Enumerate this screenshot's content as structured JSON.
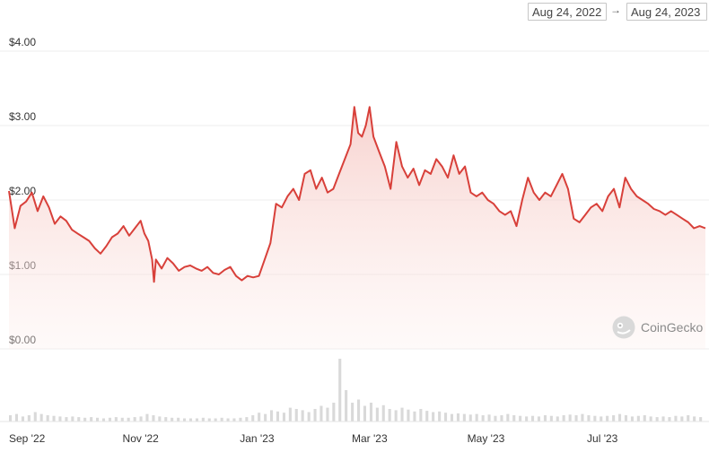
{
  "date_range": {
    "from": "Aug 24, 2022",
    "arrow": "→",
    "to": "Aug 24, 2023"
  },
  "watermark": {
    "label": "CoinGecko"
  },
  "colors": {
    "line": "#d8403a",
    "fill_top": "#f6c9c5",
    "volume": "#d9d9d9",
    "grid": "#ececec"
  },
  "chart_data": {
    "type": "area",
    "title": "",
    "xlabel": "",
    "ylabel": "",
    "ylim": [
      0,
      4
    ],
    "y_ticks": [
      {
        "value": 4,
        "label": "$4.00"
      },
      {
        "value": 3,
        "label": "$3.00"
      },
      {
        "value": 2,
        "label": "$2.00"
      },
      {
        "value": 1,
        "label": "$1.00"
      },
      {
        "value": 0,
        "label": "$0.00"
      }
    ],
    "x_range": [
      "2022-08-24",
      "2023-08-24"
    ],
    "x_ticks": [
      {
        "date": "2022-09-01",
        "label": "Sep '22"
      },
      {
        "date": "2022-11-01",
        "label": "Nov '22"
      },
      {
        "date": "2023-01-01",
        "label": "Jan '23"
      },
      {
        "date": "2023-03-01",
        "label": "Mar '23"
      },
      {
        "date": "2023-05-01",
        "label": "May '23"
      },
      {
        "date": "2023-07-01",
        "label": "Jul '23"
      }
    ],
    "grid": true,
    "series": [
      {
        "values": [
          [
            "2022-08-24",
            2.12
          ],
          [
            "2022-08-27",
            1.62
          ],
          [
            "2022-08-30",
            1.92
          ],
          [
            "2022-09-02",
            1.98
          ],
          [
            "2022-09-05",
            2.1
          ],
          [
            "2022-09-08",
            1.85
          ],
          [
            "2022-09-11",
            2.05
          ],
          [
            "2022-09-14",
            1.9
          ],
          [
            "2022-09-17",
            1.68
          ],
          [
            "2022-09-20",
            1.78
          ],
          [
            "2022-09-23",
            1.72
          ],
          [
            "2022-09-26",
            1.6
          ],
          [
            "2022-09-29",
            1.55
          ],
          [
            "2022-10-02",
            1.5
          ],
          [
            "2022-10-05",
            1.45
          ],
          [
            "2022-10-08",
            1.35
          ],
          [
            "2022-10-11",
            1.28
          ],
          [
            "2022-10-14",
            1.38
          ],
          [
            "2022-10-17",
            1.5
          ],
          [
            "2022-10-20",
            1.55
          ],
          [
            "2022-10-23",
            1.65
          ],
          [
            "2022-10-26",
            1.52
          ],
          [
            "2022-10-29",
            1.62
          ],
          [
            "2022-11-01",
            1.72
          ],
          [
            "2022-11-03",
            1.55
          ],
          [
            "2022-11-05",
            1.45
          ],
          [
            "2022-11-07",
            1.2
          ],
          [
            "2022-11-08",
            0.9
          ],
          [
            "2022-11-09",
            1.2
          ],
          [
            "2022-11-12",
            1.08
          ],
          [
            "2022-11-15",
            1.22
          ],
          [
            "2022-11-18",
            1.15
          ],
          [
            "2022-11-21",
            1.05
          ],
          [
            "2022-11-24",
            1.1
          ],
          [
            "2022-11-27",
            1.12
          ],
          [
            "2022-11-30",
            1.08
          ],
          [
            "2022-12-03",
            1.05
          ],
          [
            "2022-12-06",
            1.1
          ],
          [
            "2022-12-09",
            1.02
          ],
          [
            "2022-12-12",
            1.0
          ],
          [
            "2022-12-15",
            1.06
          ],
          [
            "2022-12-18",
            1.1
          ],
          [
            "2022-12-21",
            0.98
          ],
          [
            "2022-12-24",
            0.92
          ],
          [
            "2022-12-27",
            0.98
          ],
          [
            "2022-12-30",
            0.96
          ],
          [
            "2023-01-02",
            0.98
          ],
          [
            "2023-01-05",
            1.2
          ],
          [
            "2023-01-08",
            1.42
          ],
          [
            "2023-01-11",
            1.95
          ],
          [
            "2023-01-14",
            1.9
          ],
          [
            "2023-01-17",
            2.05
          ],
          [
            "2023-01-20",
            2.15
          ],
          [
            "2023-01-23",
            2.0
          ],
          [
            "2023-01-26",
            2.35
          ],
          [
            "2023-01-29",
            2.4
          ],
          [
            "2023-02-01",
            2.15
          ],
          [
            "2023-02-04",
            2.3
          ],
          [
            "2023-02-07",
            2.1
          ],
          [
            "2023-02-10",
            2.15
          ],
          [
            "2023-02-13",
            2.35
          ],
          [
            "2023-02-16",
            2.55
          ],
          [
            "2023-02-19",
            2.75
          ],
          [
            "2023-02-21",
            3.25
          ],
          [
            "2023-02-23",
            2.9
          ],
          [
            "2023-02-25",
            2.85
          ],
          [
            "2023-02-27",
            3.0
          ],
          [
            "2023-03-01",
            3.25
          ],
          [
            "2023-03-03",
            2.85
          ],
          [
            "2023-03-06",
            2.65
          ],
          [
            "2023-03-09",
            2.45
          ],
          [
            "2023-03-12",
            2.15
          ],
          [
            "2023-03-15",
            2.78
          ],
          [
            "2023-03-18",
            2.45
          ],
          [
            "2023-03-21",
            2.3
          ],
          [
            "2023-03-24",
            2.42
          ],
          [
            "2023-03-27",
            2.2
          ],
          [
            "2023-03-30",
            2.4
          ],
          [
            "2023-04-02",
            2.35
          ],
          [
            "2023-04-05",
            2.55
          ],
          [
            "2023-04-08",
            2.45
          ],
          [
            "2023-04-11",
            2.3
          ],
          [
            "2023-04-14",
            2.6
          ],
          [
            "2023-04-17",
            2.35
          ],
          [
            "2023-04-20",
            2.45
          ],
          [
            "2023-04-23",
            2.1
          ],
          [
            "2023-04-26",
            2.05
          ],
          [
            "2023-04-29",
            2.1
          ],
          [
            "2023-05-02",
            2.0
          ],
          [
            "2023-05-05",
            1.95
          ],
          [
            "2023-05-08",
            1.85
          ],
          [
            "2023-05-11",
            1.8
          ],
          [
            "2023-05-14",
            1.85
          ],
          [
            "2023-05-17",
            1.65
          ],
          [
            "2023-05-20",
            2.0
          ],
          [
            "2023-05-23",
            2.3
          ],
          [
            "2023-05-26",
            2.1
          ],
          [
            "2023-05-29",
            2.0
          ],
          [
            "2023-06-01",
            2.1
          ],
          [
            "2023-06-04",
            2.05
          ],
          [
            "2023-06-07",
            2.2
          ],
          [
            "2023-06-10",
            2.35
          ],
          [
            "2023-06-13",
            2.15
          ],
          [
            "2023-06-16",
            1.75
          ],
          [
            "2023-06-19",
            1.7
          ],
          [
            "2023-06-22",
            1.8
          ],
          [
            "2023-06-25",
            1.9
          ],
          [
            "2023-06-28",
            1.95
          ],
          [
            "2023-07-01",
            1.85
          ],
          [
            "2023-07-04",
            2.05
          ],
          [
            "2023-07-07",
            2.15
          ],
          [
            "2023-07-10",
            1.9
          ],
          [
            "2023-07-13",
            2.3
          ],
          [
            "2023-07-16",
            2.15
          ],
          [
            "2023-07-19",
            2.05
          ],
          [
            "2023-07-22",
            2.0
          ],
          [
            "2023-07-25",
            1.95
          ],
          [
            "2023-07-28",
            1.88
          ],
          [
            "2023-07-31",
            1.85
          ],
          [
            "2023-08-03",
            1.8
          ],
          [
            "2023-08-06",
            1.85
          ],
          [
            "2023-08-09",
            1.8
          ],
          [
            "2023-08-12",
            1.75
          ],
          [
            "2023-08-15",
            1.7
          ],
          [
            "2023-08-18",
            1.62
          ],
          [
            "2023-08-21",
            1.65
          ],
          [
            "2023-08-24",
            1.62
          ]
        ]
      }
    ],
    "volume": [
      0.1,
      0.12,
      0.08,
      0.1,
      0.15,
      0.12,
      0.1,
      0.09,
      0.08,
      0.07,
      0.08,
      0.07,
      0.06,
      0.07,
      0.06,
      0.05,
      0.06,
      0.07,
      0.06,
      0.06,
      0.07,
      0.08,
      0.12,
      0.1,
      0.08,
      0.07,
      0.06,
      0.06,
      0.05,
      0.05,
      0.05,
      0.06,
      0.05,
      0.05,
      0.06,
      0.05,
      0.05,
      0.06,
      0.07,
      0.1,
      0.14,
      0.12,
      0.18,
      0.16,
      0.14,
      0.22,
      0.2,
      0.18,
      0.15,
      0.2,
      0.25,
      0.22,
      0.3,
      1.0,
      0.5,
      0.3,
      0.35,
      0.25,
      0.3,
      0.22,
      0.26,
      0.2,
      0.18,
      0.22,
      0.19,
      0.16,
      0.2,
      0.17,
      0.15,
      0.16,
      0.14,
      0.12,
      0.13,
      0.12,
      0.11,
      0.12,
      0.1,
      0.11,
      0.09,
      0.1,
      0.12,
      0.1,
      0.09,
      0.08,
      0.09,
      0.08,
      0.1,
      0.09,
      0.08,
      0.1,
      0.11,
      0.1,
      0.12,
      0.1,
      0.09,
      0.08,
      0.09,
      0.1,
      0.12,
      0.1,
      0.08,
      0.09,
      0.1,
      0.08,
      0.07,
      0.08,
      0.07,
      0.09,
      0.08,
      0.1,
      0.08,
      0.07
    ]
  }
}
